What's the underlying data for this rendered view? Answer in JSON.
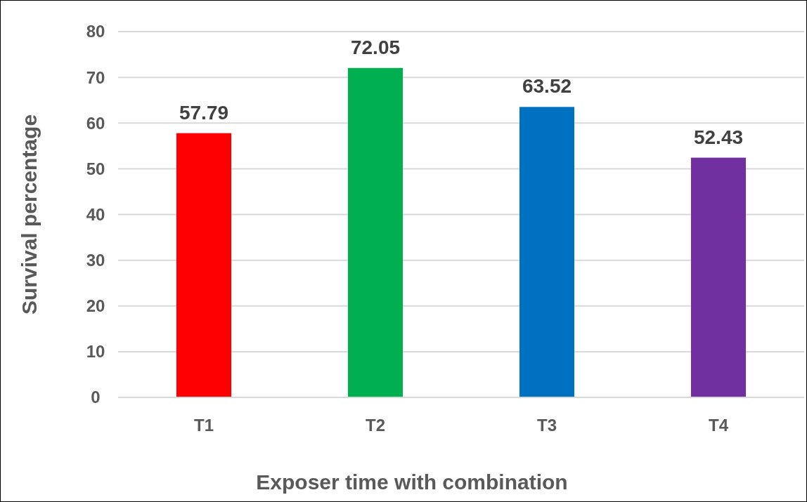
{
  "chart_data": {
    "type": "bar",
    "xlabel": "Exposer time with combination",
    "ylabel": "Survival percentage",
    "categories": [
      "T1",
      "T2",
      "T3",
      "T4"
    ],
    "values": [
      57.79,
      72.05,
      63.52,
      52.43
    ],
    "colors": [
      "#ff0000",
      "#00b050",
      "#0070c0",
      "#7030a0"
    ],
    "ylim": [
      0,
      80
    ],
    "yticks": [
      0,
      10,
      20,
      30,
      40,
      50,
      60,
      70,
      80
    ],
    "grid": "y",
    "data_labels": true
  }
}
